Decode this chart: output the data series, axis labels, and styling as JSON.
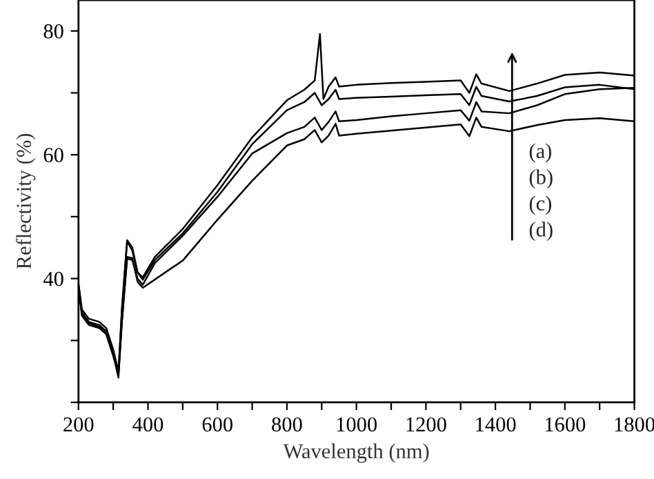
{
  "chart_data": {
    "type": "line",
    "xlabel": "Wavelength (nm)",
    "ylabel": "Reflectivity (%)",
    "xlim": [
      200,
      1800
    ],
    "ylim": [
      20,
      85
    ],
    "xticks": [
      200,
      {
        "value": 300,
        "label": null
      },
      400,
      {
        "value": 500,
        "label": null
      },
      600,
      {
        "value": 700,
        "label": null
      },
      800,
      {
        "value": 900,
        "label": null
      },
      1000,
      {
        "value": 1100,
        "label": null
      },
      1200,
      {
        "value": 1300,
        "label": null
      },
      1400,
      {
        "value": 1500,
        "label": null
      },
      1600,
      {
        "value": 1700,
        "label": null
      },
      1800
    ],
    "yticks": [
      {
        "value": 20,
        "label": null
      },
      {
        "value": 30,
        "label": null
      },
      40,
      {
        "value": 50,
        "label": null
      },
      60,
      {
        "value": 70,
        "label": null
      },
      80
    ],
    "grid": false,
    "legend": false,
    "marker": "none",
    "line_style": "solid",
    "annotations": [
      "(a)",
      "(b)",
      "(c)",
      "(d)"
    ],
    "series": [
      {
        "color": "#000000",
        "x": [
          200,
          210,
          230,
          260,
          280,
          300,
          315,
          325,
          340,
          355,
          370,
          385,
          420,
          500,
          600,
          700,
          800,
          850,
          880,
          895,
          905,
          920,
          940,
          950,
          1000,
          1100,
          1200,
          1300,
          1325,
          1345,
          1360,
          1440,
          1520,
          1600,
          1700,
          1800
        ],
        "values": [
          39.2,
          35,
          33.5,
          33,
          32,
          28.5,
          25,
          35,
          46.2,
          45,
          41,
          40.2,
          43.5,
          48.0,
          55.1,
          62.8,
          68.8,
          70.5,
          72,
          79.5,
          69,
          71,
          72.5,
          71,
          71.3,
          71.6,
          71.8,
          72.0,
          70,
          73,
          71.5,
          70.3,
          71.5,
          72.9,
          73.3,
          72.8
        ]
      },
      {
        "color": "#000000",
        "x": [
          200,
          210,
          230,
          260,
          280,
          300,
          315,
          325,
          340,
          355,
          370,
          385,
          420,
          500,
          600,
          700,
          800,
          850,
          880,
          900,
          920,
          940,
          950,
          1000,
          1100,
          1200,
          1300,
          1325,
          1345,
          1360,
          1440,
          1520,
          1600,
          1700,
          1800
        ],
        "values": [
          39,
          34.5,
          33,
          32.5,
          31.5,
          28,
          24.5,
          35,
          46,
          44.5,
          41,
          39.8,
          43,
          47.3,
          54.0,
          61.7,
          67.2,
          68.5,
          70,
          68,
          69,
          70.5,
          69,
          69.2,
          69.4,
          69.6,
          69.8,
          68,
          71,
          69.5,
          68.6,
          69.5,
          70.9,
          71.3,
          70.6
        ]
      },
      {
        "color": "#000000",
        "x": [
          200,
          210,
          230,
          260,
          280,
          300,
          315,
          325,
          340,
          355,
          370,
          385,
          420,
          500,
          600,
          700,
          800,
          850,
          880,
          900,
          920,
          940,
          950,
          1000,
          1100,
          1200,
          1300,
          1325,
          1345,
          1360,
          1440,
          1520,
          1600,
          1700,
          1800
        ],
        "values": [
          38.5,
          34,
          32.5,
          32,
          31,
          27.5,
          24.5,
          33,
          43.2,
          43,
          40,
          39,
          42.5,
          46.9,
          53.2,
          60.2,
          63.5,
          64.5,
          66,
          64,
          65.3,
          67,
          65.4,
          65.6,
          66.2,
          66.7,
          67.2,
          65.5,
          68.5,
          67,
          66.7,
          68,
          69.8,
          70.6,
          70.8
        ]
      },
      {
        "color": "#000000",
        "x": [
          200,
          210,
          230,
          260,
          280,
          300,
          315,
          325,
          340,
          355,
          370,
          385,
          450,
          500,
          600,
          700,
          800,
          850,
          880,
          900,
          920,
          940,
          950,
          1000,
          1100,
          1200,
          1300,
          1325,
          1345,
          1360,
          1440,
          1520,
          1600,
          1700,
          1800
        ],
        "values": [
          38.8,
          34.2,
          32.8,
          32.2,
          31.2,
          27.8,
          24,
          33,
          43.5,
          43.3,
          39.5,
          38.5,
          41,
          42.9,
          49.5,
          55.8,
          61.5,
          62.5,
          64,
          62,
          63.1,
          65,
          63.1,
          63.4,
          63.9,
          64.4,
          64.9,
          63,
          66,
          64.5,
          63.8,
          64.8,
          65.6,
          65.9,
          65.4
        ]
      }
    ]
  }
}
